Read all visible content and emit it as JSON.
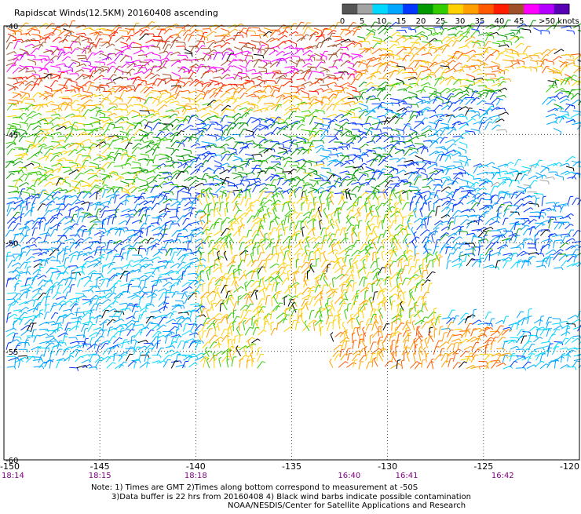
{
  "header": {
    "title": "Rapidscat Winds(12.5KM) 20160408 ascending"
  },
  "legend": {
    "colors": [
      "#555555",
      "#a3a3a3",
      "#00d8ff",
      "#00a6ff",
      "#0037ff",
      "#009900",
      "#33cc00",
      "#ffd000",
      "#ffa000",
      "#ff5a00",
      "#ff1e00",
      "#a05028",
      "#ff00ff",
      "#b400ff",
      "#5a00b4"
    ],
    "labels": [
      "0",
      "5",
      "10",
      "15",
      "20",
      "25",
      "30",
      "35",
      "40",
      "45",
      ">50 knots"
    ]
  },
  "map": {
    "lon_ticks": [
      "-150",
      "-145",
      "-140",
      "-135",
      "-130",
      "-125",
      "-120"
    ],
    "lat_ticks": [
      "-40",
      "-45",
      "-50",
      "-55",
      "-60"
    ],
    "time_ticks": [
      {
        "lon": -150,
        "label": "18:14"
      },
      {
        "lon": -145,
        "label": "18:15"
      },
      {
        "lon": -140,
        "label": "18:18"
      },
      {
        "lon": -132,
        "label": "16:40"
      },
      {
        "lon": -129,
        "label": "16:41"
      },
      {
        "lon": -124,
        "label": "16:42"
      }
    ]
  },
  "footer": {
    "note_line1": "Note: 1) Times are GMT 2)Times along bottom correspond to measurement at -50S",
    "note_line2": "3)Data buffer is 22 hrs from 20160408 4) Black wind barbs indicate possible contamination",
    "credit": "NOAA/NESDIS/Center for Satellite Applications and Research"
  }
}
